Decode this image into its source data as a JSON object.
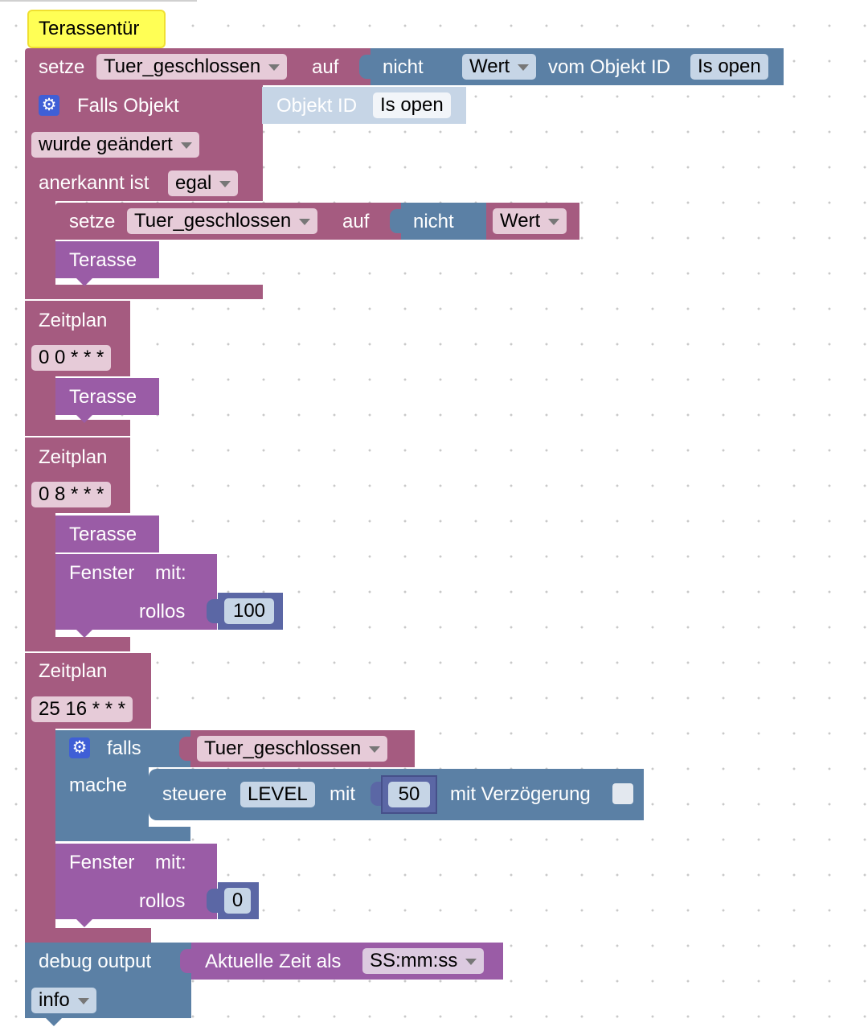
{
  "comment": {
    "text": "Terassentür"
  },
  "block1": {
    "setze": "setze",
    "variable": "Tuer_geschlossen",
    "auf": "auf",
    "nicht": "nicht",
    "wert": "Wert",
    "vom_objekt_id": "vom Objekt ID",
    "object": "Is open"
  },
  "trigger": {
    "falls_objekt": "Falls Objekt",
    "objekt_id": "Objekt ID",
    "object": "Is open",
    "condition": "wurde geändert",
    "anerkannt_label": "anerkannt ist",
    "anerkannt_value": "egal",
    "setze": "setze",
    "variable": "Tuer_geschlossen",
    "auf": "auf",
    "nicht": "nicht",
    "wert": "Wert",
    "call": "Terasse"
  },
  "schedule1": {
    "label": "Zeitplan",
    "cron": "0 0 * * *",
    "call": "Terasse"
  },
  "schedule2": {
    "label": "Zeitplan",
    "cron": "0 8 * * *",
    "call": "Terasse",
    "fenster": "Fenster",
    "mit": "mit:",
    "rollos": "rollos",
    "rollos_value": "100"
  },
  "schedule3": {
    "label": "Zeitplan",
    "cron": "25 16 * * *",
    "falls": "falls",
    "mache": "mache",
    "condition_var": "Tuer_geschlossen",
    "steuere": "steuere",
    "level": "LEVEL",
    "mit": "mit",
    "level_value": "50",
    "mit_verzoegerung": "mit Verzögerung",
    "fenster": "Fenster",
    "fenster_mit": "mit:",
    "rollos": "rollos",
    "rollos_value": "0"
  },
  "debug": {
    "label": "debug output",
    "level": "info",
    "value_prefix": "Aktuelle Zeit als",
    "format": "SS:mm:ss"
  },
  "colors": {
    "event_block": "#a55b80",
    "logic_block": "#5b80a5",
    "function_block": "#9a5ca6",
    "field_pink": "#e6cbd8",
    "field_blue": "#c6d5e6",
    "comment_yellow": "#ffff55"
  }
}
